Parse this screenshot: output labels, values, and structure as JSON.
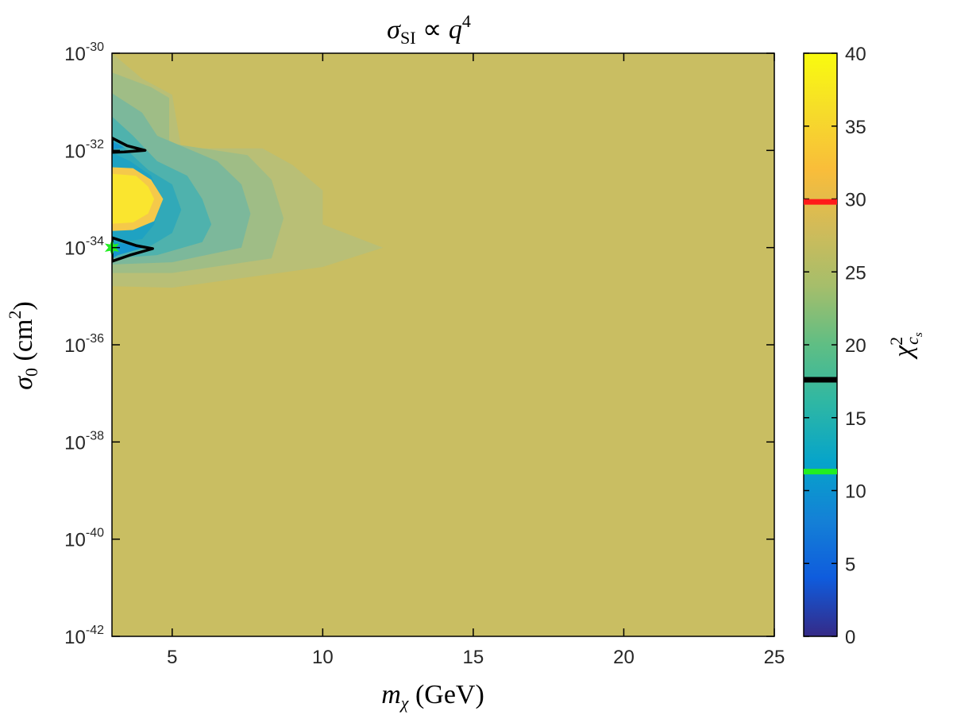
{
  "chart_data": {
    "type": "heatmap",
    "title": "σ_SI ∝ q^4",
    "xlabel": "m_χ (GeV)",
    "ylabel": "σ_0 (cm^2)",
    "colorbar_label": "χ^2_{c_s}",
    "x_range": [
      3,
      25
    ],
    "y_range": [
      1e-42,
      1e-30
    ],
    "y_scale": "log",
    "z_range": [
      0,
      40
    ],
    "grid": false,
    "x_ticks": [
      5,
      10,
      15,
      20,
      25
    ],
    "x_tick_labels": [
      "5",
      "10",
      "15",
      "20",
      "25"
    ],
    "y_ticks": [
      1e-42,
      1e-40,
      1e-38,
      1e-36,
      1e-34,
      1e-32,
      1e-30
    ],
    "y_tick_labels": [
      {
        "base": "10",
        "exp": "-42"
      },
      {
        "base": "10",
        "exp": "-40"
      },
      {
        "base": "10",
        "exp": "-38"
      },
      {
        "base": "10",
        "exp": "-36"
      },
      {
        "base": "10",
        "exp": "-34"
      },
      {
        "base": "10",
        "exp": "-32"
      },
      {
        "base": "10",
        "exp": "-30"
      }
    ],
    "colorbar_ticks": [
      0,
      5,
      10,
      15,
      20,
      25,
      30,
      35,
      40
    ],
    "colorbar_tick_labels": [
      "0",
      "5",
      "10",
      "15",
      "20",
      "25",
      "30",
      "35",
      "40"
    ],
    "background_value": 28.5,
    "contour_level_markers": [
      {
        "value": 29.8,
        "color": "#ff1a1a"
      },
      {
        "value": 17.6,
        "color": "#000000"
      },
      {
        "value": 11.3,
        "color": "#22ee22"
      }
    ],
    "best_fit_point": {
      "x": 3.0,
      "y": 1e-34,
      "color": "#22ee22"
    },
    "regions": [
      {
        "value": 27.8,
        "color": "#b9bf76",
        "polygon": [
          [
            3.0,
            1e-30
          ],
          [
            4.0,
            3e-31
          ],
          [
            5.0,
            1.4e-31
          ],
          [
            5.3,
            1.1e-32
          ],
          [
            8.0,
            1.1e-32
          ],
          [
            9.0,
            5e-33
          ],
          [
            10.0,
            1.5e-33
          ],
          [
            10.0,
            3e-34
          ],
          [
            12.0,
            1e-34
          ],
          [
            10.0,
            4e-35
          ],
          [
            5.0,
            1.5e-35
          ],
          [
            3.0,
            1.6e-35
          ]
        ]
      },
      {
        "value": 26.0,
        "color": "#9fbd86",
        "polygon": [
          [
            3.0,
            4e-31
          ],
          [
            4.3,
            2e-31
          ],
          [
            4.9,
            1.2e-31
          ],
          [
            4.9,
            1.4e-32
          ],
          [
            7.5,
            8e-33
          ],
          [
            8.3,
            2.5e-33
          ],
          [
            8.7,
            4e-34
          ],
          [
            8.3,
            6e-35
          ],
          [
            5.0,
            3e-35
          ],
          [
            3.0,
            3e-35
          ]
        ]
      },
      {
        "value": 23.5,
        "color": "#7cb89b",
        "polygon": [
          [
            3.0,
            1.5e-31
          ],
          [
            4.0,
            6e-32
          ],
          [
            4.5,
            2e-32
          ],
          [
            6.5,
            6e-33
          ],
          [
            7.3,
            2e-33
          ],
          [
            7.6,
            5e-34
          ],
          [
            7.3,
            1e-34
          ],
          [
            5.0,
            5e-35
          ],
          [
            3.0,
            4.5e-35
          ]
        ]
      },
      {
        "value": 20.5,
        "color": "#4fb2ad",
        "polygon": [
          [
            3.0,
            5e-32
          ],
          [
            3.7,
            2e-32
          ],
          [
            4.5,
            6e-33
          ],
          [
            5.5,
            3e-33
          ],
          [
            6.0,
            1e-33
          ],
          [
            6.3,
            3e-34
          ],
          [
            6.0,
            1.3e-34
          ],
          [
            4.5,
            7e-35
          ],
          [
            3.0,
            6e-35
          ]
        ]
      },
      {
        "value": 18.5,
        "color": "#31a9b8",
        "polygon": [
          [
            3.0,
            2e-32
          ],
          [
            3.5,
            1e-32
          ],
          [
            4.2,
            4e-33
          ],
          [
            5.0,
            2e-33
          ],
          [
            5.3,
            6e-34
          ],
          [
            5.0,
            2e-34
          ],
          [
            4.3,
            1.1e-34
          ],
          [
            3.0,
            8e-35
          ]
        ]
      },
      {
        "value": 16.8,
        "color": "#1fa2c2",
        "polygon": [
          [
            3.0,
            9e-33
          ],
          [
            3.6,
            6e-33
          ],
          [
            4.3,
            3e-33
          ],
          [
            4.6,
            1e-33
          ],
          [
            4.4,
            3e-34
          ],
          [
            4.0,
            1.5e-34
          ],
          [
            3.0,
            1.2e-34
          ]
        ]
      },
      {
        "value": 33.0,
        "color": "#f5c94a",
        "polygon": [
          [
            3.0,
            4.5e-33
          ],
          [
            3.7,
            4.3e-33
          ],
          [
            4.3,
            2.5e-33
          ],
          [
            4.7,
            1e-33
          ],
          [
            4.4,
            3.5e-34
          ],
          [
            3.7,
            2.3e-34
          ],
          [
            3.0,
            2.2e-34
          ]
        ]
      },
      {
        "value": 37.0,
        "color": "#fae52f",
        "polygon": [
          [
            3.0,
            3.3e-33
          ],
          [
            3.8,
            3e-33
          ],
          [
            4.2,
            1.8e-33
          ],
          [
            4.4,
            1e-33
          ],
          [
            4.2,
            5e-34
          ],
          [
            3.7,
            3.3e-34
          ],
          [
            3.0,
            3.1e-34
          ]
        ]
      },
      {
        "value": 15.5,
        "color": "#1596cf",
        "polygon": [
          [
            3.0,
            1.55e-32
          ],
          [
            3.4,
            1.15e-32
          ],
          [
            3.0,
            1.05e-32
          ]
        ]
      },
      {
        "value": 15.5,
        "color": "#1596cf",
        "polygon": [
          [
            3.0,
            1.3e-34
          ],
          [
            4.2,
            1.05e-34
          ],
          [
            3.2,
            7e-35
          ],
          [
            3.0,
            6e-35
          ]
        ]
      }
    ],
    "contours": [
      {
        "color": "#000000",
        "polygon": [
          [
            3.0,
            1.8e-32
          ],
          [
            3.5,
            1.25e-32
          ],
          [
            4.1,
            1e-32
          ],
          [
            3.4,
            9.3e-33
          ],
          [
            3.0,
            9.1e-33
          ]
        ]
      },
      {
        "color": "#000000",
        "polygon": [
          [
            3.0,
            1.6e-34
          ],
          [
            3.8,
            1.1e-34
          ],
          [
            4.35,
            9.5e-35
          ],
          [
            3.6,
            7e-35
          ],
          [
            3.0,
            5.2e-35
          ]
        ]
      }
    ]
  }
}
